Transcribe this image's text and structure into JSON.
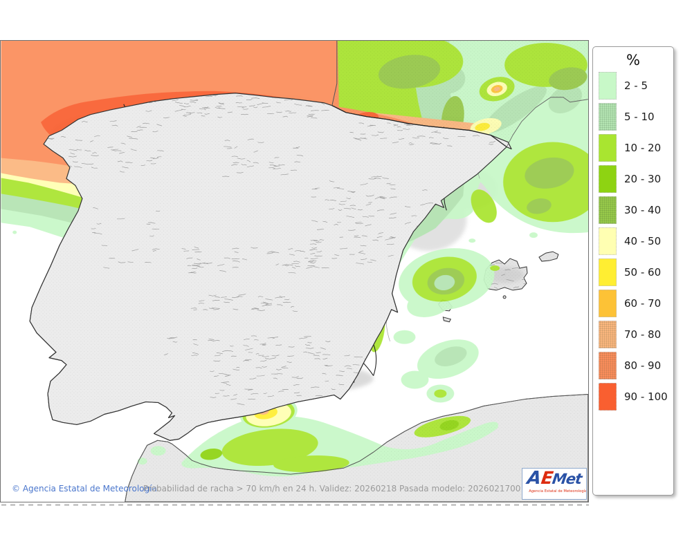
{
  "footer": {
    "copyright": "© Agencia Estatal de Meteorología",
    "description": "Probabilidad de racha > 70 km/h en 24 h. Validez: 20260218 Pasada modelo: 2026021700"
  },
  "logo": {
    "letter_a": "A",
    "letter_e": "E",
    "letter_met": "Met",
    "subtitle": "Agencia Estatal de Meteorología"
  },
  "legend": {
    "title": "%",
    "entries": [
      {
        "label": "2 - 5",
        "color": "#c8f8c8",
        "textured": false
      },
      {
        "label": "5 - 10",
        "color": "#b4e4b2",
        "textured": true
      },
      {
        "label": "10 - 20",
        "color": "#a9e530",
        "textured": false
      },
      {
        "label": "20 - 30",
        "color": "#8ed312",
        "textured": false
      },
      {
        "label": "30 - 40",
        "color": "#97c94a",
        "textured": true
      },
      {
        "label": "40 - 50",
        "color": "#ffffb2",
        "textured": false
      },
      {
        "label": "50 - 60",
        "color": "#ffee32",
        "textured": false
      },
      {
        "label": "60 - 70",
        "color": "#fdc236",
        "textured": false
      },
      {
        "label": "70 - 80",
        "color": "#fbb67e",
        "textured": true
      },
      {
        "label": "80 - 90",
        "color": "#fb8d5b",
        "textured": true
      },
      {
        "label": "90 - 100",
        "color": "#f95f30",
        "textured": false
      }
    ]
  }
}
